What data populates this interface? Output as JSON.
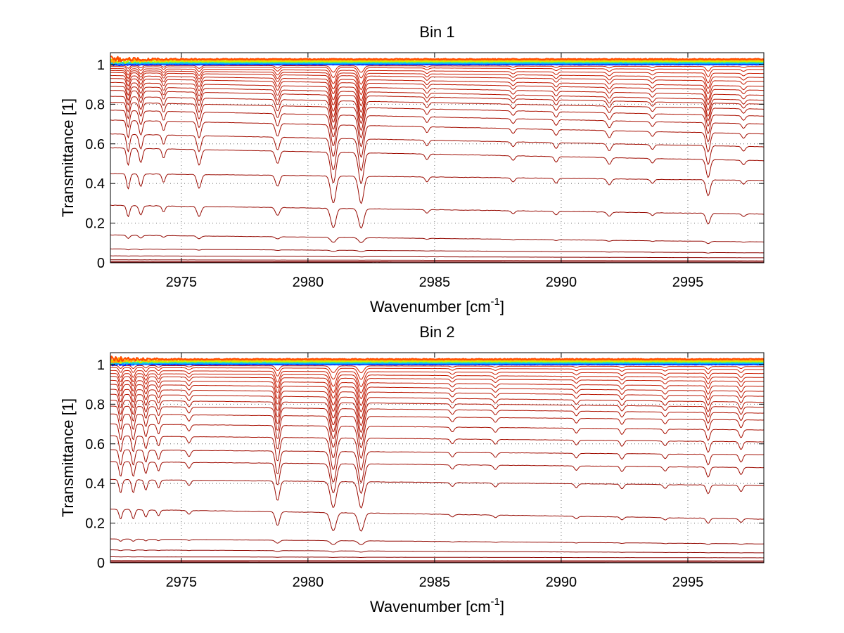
{
  "chart_data": [
    {
      "type": "line",
      "title": "Bin 1",
      "xlabel": "Wavenumber [cm",
      "xlabel_sup": "-1",
      "xlabel_end": "]",
      "ylabel": "Transmittance [1]",
      "xlim": [
        2972.2,
        2998.0
      ],
      "ylim": [
        0,
        1.06
      ],
      "xticks": [
        2975,
        2980,
        2985,
        2990,
        2995
      ],
      "xtick_labels": [
        "2975",
        "2980",
        "2985",
        "2990",
        "2995"
      ],
      "yticks": [
        0,
        0.2,
        0.4,
        0.6,
        0.8,
        1
      ],
      "ytick_labels": [
        "0",
        "0.2",
        "0.4",
        "0.6",
        "0.8",
        "1"
      ],
      "grid": true,
      "grid_style": "dotted",
      "series_colors": [
        "#0a1cff",
        "#00b4ff",
        "#34e0a0",
        "#c8f000",
        "#ffb000",
        "#ff4a00"
      ],
      "absorption_lines": [
        {
          "x": 2972.9,
          "depth": 0.55,
          "width": 0.06
        },
        {
          "x": 2973.4,
          "depth": 0.45,
          "width": 0.07
        },
        {
          "x": 2974.3,
          "depth": 0.3,
          "width": 0.06
        },
        {
          "x": 2975.7,
          "depth": 0.5,
          "width": 0.08
        },
        {
          "x": 2978.8,
          "depth": 0.4,
          "width": 0.08
        },
        {
          "x": 2981.0,
          "depth": 1.0,
          "width": 0.1
        },
        {
          "x": 2982.1,
          "depth": 1.0,
          "width": 0.1
        },
        {
          "x": 2984.7,
          "depth": 0.18,
          "width": 0.07
        },
        {
          "x": 2988.1,
          "depth": 0.15,
          "width": 0.07
        },
        {
          "x": 2989.8,
          "depth": 0.18,
          "width": 0.07
        },
        {
          "x": 2991.9,
          "depth": 0.22,
          "width": 0.08
        },
        {
          "x": 2993.6,
          "depth": 0.15,
          "width": 0.07
        },
        {
          "x": 2995.8,
          "depth": 0.6,
          "width": 0.08
        },
        {
          "x": 2997.2,
          "depth": 0.15,
          "width": 0.07
        }
      ],
      "series": [
        {
          "start": 1.0,
          "end": 1.0
        },
        {
          "start": 0.996,
          "end": 0.99
        },
        {
          "start": 0.99,
          "end": 0.975
        },
        {
          "start": 0.98,
          "end": 0.955
        },
        {
          "start": 0.97,
          "end": 0.935
        },
        {
          "start": 0.96,
          "end": 0.915
        },
        {
          "start": 0.945,
          "end": 0.89
        },
        {
          "start": 0.93,
          "end": 0.87
        },
        {
          "start": 0.91,
          "end": 0.845
        },
        {
          "start": 0.89,
          "end": 0.82
        },
        {
          "start": 0.87,
          "end": 0.8
        },
        {
          "start": 0.84,
          "end": 0.775
        },
        {
          "start": 0.81,
          "end": 0.74
        },
        {
          "start": 0.77,
          "end": 0.7
        },
        {
          "start": 0.72,
          "end": 0.65
        },
        {
          "start": 0.65,
          "end": 0.585
        },
        {
          "start": 0.58,
          "end": 0.515
        },
        {
          "start": 0.45,
          "end": 0.415
        },
        {
          "start": 0.29,
          "end": 0.245
        },
        {
          "start": 0.14,
          "end": 0.105
        },
        {
          "start": 0.07,
          "end": 0.05
        },
        {
          "start": 0.035,
          "end": 0.025
        },
        {
          "start": 0.015,
          "end": 0.01
        },
        {
          "start": 0.006,
          "end": 0.004
        },
        {
          "start": 0.002,
          "end": 0.001
        }
      ]
    },
    {
      "type": "line",
      "title": "Bin 2",
      "xlabel": "Wavenumber [cm",
      "xlabel_sup": "-1",
      "xlabel_end": "]",
      "ylabel": "Transmittance [1]",
      "xlim": [
        2972.2,
        2998.0
      ],
      "ylim": [
        0,
        1.06
      ],
      "xticks": [
        2975,
        2980,
        2985,
        2990,
        2995
      ],
      "xtick_labels": [
        "2975",
        "2980",
        "2985",
        "2990",
        "2995"
      ],
      "yticks": [
        0,
        0.2,
        0.4,
        0.6,
        0.8,
        1
      ],
      "ytick_labels": [
        "0",
        "0.2",
        "0.4",
        "0.6",
        "0.8",
        "1"
      ],
      "grid": true,
      "grid_style": "dotted",
      "series_colors": [
        "#0a1cff",
        "#00b4ff",
        "#34e0a0",
        "#c8f000",
        "#ffb000",
        "#ff4a00"
      ],
      "absorption_lines": [
        {
          "x": 2972.6,
          "depth": 0.5,
          "width": 0.06
        },
        {
          "x": 2973.1,
          "depth": 0.5,
          "width": 0.06
        },
        {
          "x": 2973.6,
          "depth": 0.4,
          "width": 0.06
        },
        {
          "x": 2974.1,
          "depth": 0.3,
          "width": 0.06
        },
        {
          "x": 2975.3,
          "depth": 0.2,
          "width": 0.07
        },
        {
          "x": 2978.8,
          "depth": 0.75,
          "width": 0.08
        },
        {
          "x": 2981.0,
          "depth": 1.0,
          "width": 0.11
        },
        {
          "x": 2982.1,
          "depth": 1.0,
          "width": 0.11
        },
        {
          "x": 2985.7,
          "depth": 0.15,
          "width": 0.07
        },
        {
          "x": 2987.4,
          "depth": 0.15,
          "width": 0.07
        },
        {
          "x": 2990.6,
          "depth": 0.15,
          "width": 0.07
        },
        {
          "x": 2992.4,
          "depth": 0.18,
          "width": 0.07
        },
        {
          "x": 2994.1,
          "depth": 0.15,
          "width": 0.07
        },
        {
          "x": 2995.8,
          "depth": 0.35,
          "width": 0.07
        },
        {
          "x": 2997.1,
          "depth": 0.25,
          "width": 0.07
        }
      ],
      "series": [
        {
          "start": 1.0,
          "end": 1.0
        },
        {
          "start": 0.995,
          "end": 0.99
        },
        {
          "start": 0.985,
          "end": 0.975
        },
        {
          "start": 0.97,
          "end": 0.955
        },
        {
          "start": 0.955,
          "end": 0.935
        },
        {
          "start": 0.94,
          "end": 0.915
        },
        {
          "start": 0.92,
          "end": 0.89
        },
        {
          "start": 0.9,
          "end": 0.865
        },
        {
          "start": 0.875,
          "end": 0.84
        },
        {
          "start": 0.85,
          "end": 0.81
        },
        {
          "start": 0.82,
          "end": 0.785
        },
        {
          "start": 0.79,
          "end": 0.755
        },
        {
          "start": 0.75,
          "end": 0.72
        },
        {
          "start": 0.7,
          "end": 0.67
        },
        {
          "start": 0.64,
          "end": 0.61
        },
        {
          "start": 0.57,
          "end": 0.545
        },
        {
          "start": 0.51,
          "end": 0.48
        },
        {
          "start": 0.42,
          "end": 0.39
        },
        {
          "start": 0.27,
          "end": 0.22
        },
        {
          "start": 0.12,
          "end": 0.095
        },
        {
          "start": 0.065,
          "end": 0.05
        },
        {
          "start": 0.03,
          "end": 0.025
        },
        {
          "start": 0.012,
          "end": 0.01
        },
        {
          "start": 0.005,
          "end": 0.004
        },
        {
          "start": 0.002,
          "end": 0.001
        }
      ]
    }
  ]
}
